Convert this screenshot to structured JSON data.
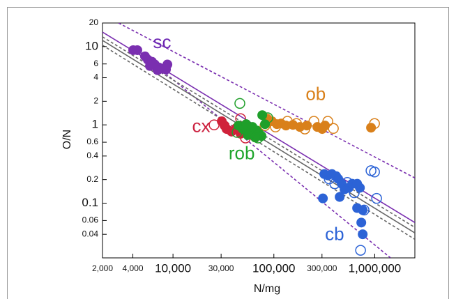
{
  "chart_data": {
    "type": "scatter",
    "xlabel": "N/mg",
    "ylabel": "O/N",
    "xscale": "log",
    "yscale": "log",
    "xlim": [
      2000,
      2500000
    ],
    "ylim": [
      0.02,
      20
    ],
    "xticks": [
      {
        "value": 2000,
        "label": "2,000"
      },
      {
        "value": 4000,
        "label": "4,000"
      },
      {
        "value": 10000,
        "label": "10,000"
      },
      {
        "value": 30000,
        "label": "30,000"
      },
      {
        "value": 100000,
        "label": "100,000"
      },
      {
        "value": 300000,
        "label": "300,000"
      },
      {
        "value": 1000000,
        "label": "1,000,000"
      }
    ],
    "yticks": [
      20,
      10,
      6,
      4,
      2,
      1,
      0.6,
      0.4,
      0.2,
      0.1,
      0.06,
      0.04
    ],
    "annotations": [
      {
        "text": "sc",
        "color": "#6b24b2",
        "x": 7800,
        "y": 11
      },
      {
        "text": "ob",
        "color": "#d9801a",
        "x": 260000,
        "y": 2.4
      },
      {
        "text": "cx",
        "color": "#cc2240",
        "x": 19000,
        "y": 0.93
      },
      {
        "text": "rob",
        "color": "#1fa52c",
        "x": 48000,
        "y": 0.42
      },
      {
        "text": "cb",
        "color": "#2c63d6",
        "x": 400000,
        "y": 0.039
      }
    ],
    "lines": [
      {
        "color": "#7a2fb0",
        "dashed": false,
        "x": [
          2000,
          2500000
        ],
        "y": [
          15.3,
          0.0565
        ]
      },
      {
        "color": "#7a2fb0",
        "dashed": true,
        "x": [
          2886,
          2500000
        ],
        "y": [
          20,
          0.21
        ]
      },
      {
        "color": "#7a2fb0",
        "dashed": true,
        "x": [
          4650,
          1435000
        ],
        "y": [
          8.5,
          0.02
        ]
      },
      {
        "color": "#666666",
        "dashed": false,
        "x": [
          2000,
          2500000
        ],
        "y": [
          12.0,
          0.0417
        ]
      },
      {
        "color": "#666666",
        "dashed": true,
        "x": [
          2000,
          2500000
        ],
        "y": [
          13.3,
          0.049
        ]
      },
      {
        "color": "#666666",
        "dashed": true,
        "x": [
          2000,
          2500000
        ],
        "y": [
          10.4,
          0.0345
        ]
      }
    ],
    "series": [
      {
        "color": "#7a2fb0",
        "marker": "filled",
        "x": [
          4030,
          4430,
          5280,
          5630,
          6190,
          6600,
          7260,
          7870,
          8520,
          8800,
          7030,
          5910
        ],
        "y": [
          9.0,
          9.0,
          7.5,
          6.8,
          6.4,
          5.9,
          5.4,
          5.2,
          5.1,
          5.9,
          5.0,
          5.65
        ]
      },
      {
        "color": "#d0223a",
        "marker": "filled",
        "x": [
          30450,
          32450,
          34000,
          38050,
          41900,
          46800,
          50700
        ],
        "y": [
          1.11,
          0.98,
          0.885,
          0.82,
          0.9,
          0.77,
          0.85
        ]
      },
      {
        "color": "#d0223a",
        "marker": "open",
        "x": [
          25570,
          46800,
          52300,
          48300
        ],
        "y": [
          1.0,
          1.2,
          0.68,
          0.94
        ]
      },
      {
        "color": "#d9801a",
        "marker": "filled",
        "x": [
          85800,
          95800,
          107200,
          117800,
          131800,
          154600,
          181200,
          212500,
          269800,
          301500,
          321500,
          918900
        ],
        "y": [
          1.2,
          1.11,
          1.02,
          1.04,
          0.98,
          1.0,
          0.94,
          0.98,
          0.94,
          0.885,
          0.98,
          0.92
        ]
      },
      {
        "color": "#d9801a",
        "marker": "open",
        "x": [
          81700,
          103700,
          136200,
          167600,
          202800,
          249400,
          342700,
          389000,
          995800
        ],
        "y": [
          0.98,
          0.94,
          1.11,
          1.04,
          0.885,
          1.11,
          1.11,
          0.9,
          1.04
        ]
      },
      {
        "color": "#1f9f2a",
        "marker": "filled",
        "x": [
          44600,
          49100,
          53200,
          57600,
          62400,
          67500,
          71900,
          75500,
          61400,
          55000,
          76700,
          81700,
          65300
        ],
        "y": [
          0.98,
          0.885,
          1.02,
          0.83,
          0.8,
          0.85,
          0.77,
          0.72,
          0.94,
          0.74,
          1.33,
          1.02,
          0.69
        ]
      },
      {
        "color": "#1f9f2a",
        "marker": "open",
        "x": [
          46000,
          57600,
          43200,
          69700,
          87100
        ],
        "y": [
          1.88,
          0.77,
          0.8,
          0.68,
          1.23
        ]
      },
      {
        "color": "#2c63d6",
        "marker": "filled",
        "x": [
          306300,
          342700,
          376800,
          415000,
          434700,
          470900,
          502000,
          552000,
          598000,
          668900,
          713000,
          449000,
          668900,
          760000,
          736000,
          760000,
          316300
        ],
        "y": [
          0.115,
          0.226,
          0.235,
          0.221,
          0.204,
          0.177,
          0.15,
          0.157,
          0.177,
          0.177,
          0.157,
          0.12,
          0.0867,
          0.0816,
          0.0565,
          0.04,
          0.235
        ]
      },
      {
        "color": "#2c63d6",
        "marker": "open",
        "x": [
          354000,
          402000,
          535000,
          627000,
          784000,
          1044000,
          995800,
          918900,
          724000
        ],
        "y": [
          0.204,
          0.177,
          0.184,
          0.136,
          0.0816,
          0.115,
          0.25,
          0.26,
          0.025
        ]
      }
    ]
  }
}
